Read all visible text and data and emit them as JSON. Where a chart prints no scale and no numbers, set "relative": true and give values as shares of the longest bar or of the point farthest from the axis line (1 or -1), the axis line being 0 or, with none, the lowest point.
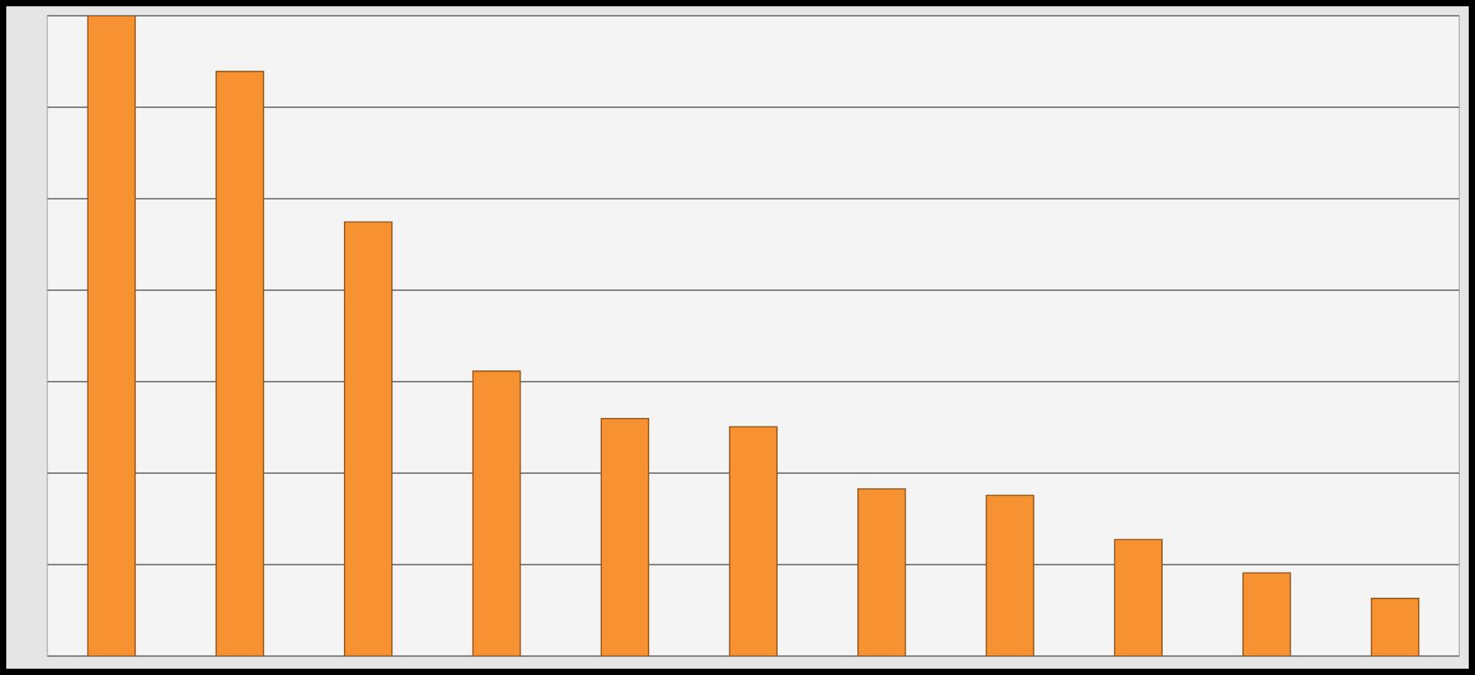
{
  "chart_data": {
    "type": "bar",
    "relative": true,
    "categories": [
      null,
      null,
      null,
      null,
      null,
      null,
      null,
      null,
      null,
      null,
      null
    ],
    "values": [
      1,
      0.913,
      0.678,
      0.445,
      0.371,
      0.358,
      0.261,
      0.251,
      0.182,
      0.13,
      0.09
    ],
    "color": "#f79232",
    "grid": "y"
  }
}
